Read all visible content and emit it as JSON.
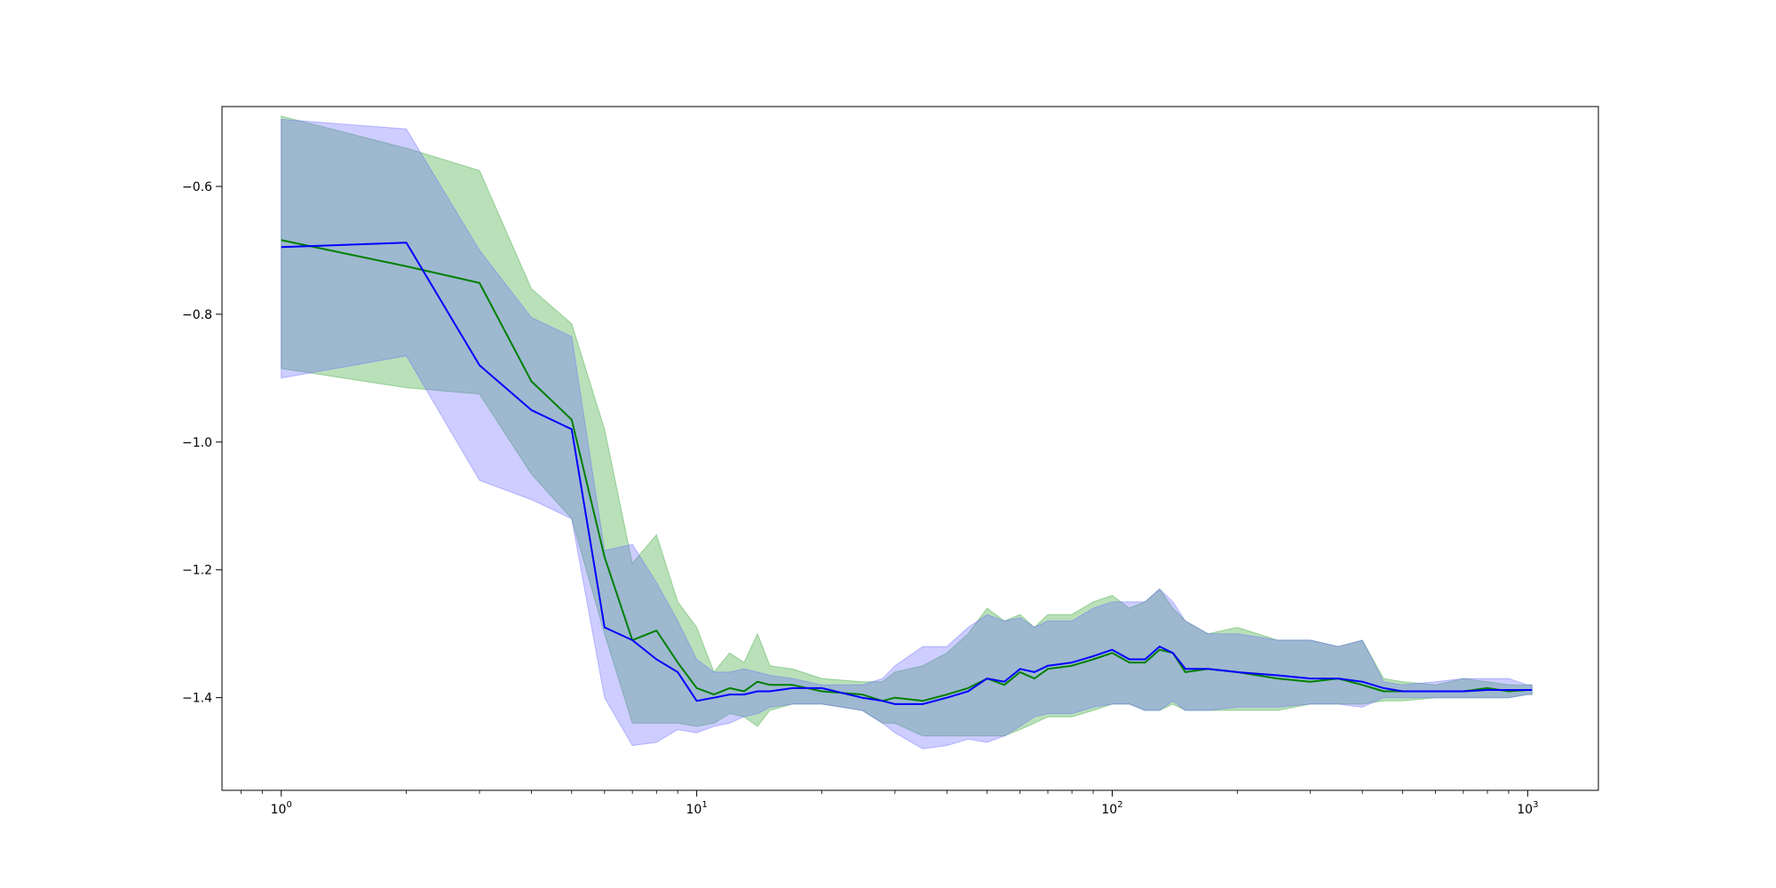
{
  "chart_data": {
    "type": "line",
    "title": "",
    "xlabel": "",
    "ylabel": "",
    "xscale": "log",
    "xlim": [
      0.72,
      1480
    ],
    "ylim": [
      -1.545,
      -0.475
    ],
    "grid": false,
    "legend": "none",
    "x_ticks": [
      {
        "value": 1,
        "base": "10",
        "exp": "0"
      },
      {
        "value": 10,
        "base": "10",
        "exp": "1"
      },
      {
        "value": 100,
        "base": "10",
        "exp": "2"
      },
      {
        "value": 1000,
        "base": "10",
        "exp": "3"
      }
    ],
    "y_ticks": [
      {
        "value": -0.6,
        "label": "−0.6"
      },
      {
        "value": -0.8,
        "label": "−0.8"
      },
      {
        "value": -1.0,
        "label": "−1.0"
      },
      {
        "value": -1.2,
        "label": "−1.2"
      },
      {
        "value": -1.4,
        "label": "−1.4"
      }
    ],
    "series": [
      {
        "color": "#008000",
        "band_color": "#2ca02c",
        "x": [
          1,
          2,
          3,
          4,
          5,
          6,
          7,
          8,
          9,
          10,
          11,
          12,
          13,
          14,
          15,
          17,
          20,
          25,
          28,
          30,
          35,
          40,
          45,
          50,
          55,
          60,
          65,
          70,
          80,
          90,
          100,
          110,
          120,
          130,
          140,
          150,
          170,
          200,
          250,
          300,
          350,
          400,
          450,
          500,
          600,
          700,
          800,
          900,
          1000,
          1024
        ],
        "mean": [
          -0.684,
          -0.725,
          -0.751,
          -0.905,
          -0.965,
          -1.18,
          -1.31,
          -1.295,
          -1.345,
          -1.385,
          -1.395,
          -1.385,
          -1.39,
          -1.375,
          -1.38,
          -1.38,
          -1.39,
          -1.395,
          -1.405,
          -1.4,
          -1.405,
          -1.395,
          -1.385,
          -1.37,
          -1.38,
          -1.36,
          -1.37,
          -1.355,
          -1.35,
          -1.34,
          -1.33,
          -1.345,
          -1.345,
          -1.325,
          -1.33,
          -1.36,
          -1.355,
          -1.36,
          -1.37,
          -1.375,
          -1.37,
          -1.38,
          -1.39,
          -1.39,
          -1.39,
          -1.39,
          -1.385,
          -1.39,
          -1.388,
          -1.388
        ],
        "upper": [
          -0.49,
          -0.54,
          -0.575,
          -0.76,
          -0.815,
          -0.98,
          -1.19,
          -1.145,
          -1.25,
          -1.29,
          -1.36,
          -1.33,
          -1.345,
          -1.3,
          -1.35,
          -1.355,
          -1.37,
          -1.375,
          -1.375,
          -1.36,
          -1.35,
          -1.33,
          -1.3,
          -1.26,
          -1.28,
          -1.27,
          -1.29,
          -1.27,
          -1.27,
          -1.25,
          -1.24,
          -1.26,
          -1.25,
          -1.23,
          -1.26,
          -1.28,
          -1.3,
          -1.29,
          -1.31,
          -1.31,
          -1.32,
          -1.31,
          -1.37,
          -1.375,
          -1.38,
          -1.37,
          -1.375,
          -1.38,
          -1.38,
          -1.38
        ],
        "lower": [
          -0.885,
          -0.915,
          -0.925,
          -1.05,
          -1.12,
          -1.3,
          -1.44,
          -1.44,
          -1.44,
          -1.445,
          -1.44,
          -1.425,
          -1.43,
          -1.445,
          -1.42,
          -1.41,
          -1.41,
          -1.42,
          -1.44,
          -1.44,
          -1.46,
          -1.46,
          -1.46,
          -1.46,
          -1.46,
          -1.45,
          -1.44,
          -1.43,
          -1.43,
          -1.42,
          -1.41,
          -1.41,
          -1.42,
          -1.42,
          -1.41,
          -1.42,
          -1.42,
          -1.42,
          -1.42,
          -1.41,
          -1.41,
          -1.41,
          -1.405,
          -1.405,
          -1.4,
          -1.4,
          -1.4,
          -1.4,
          -1.395,
          -1.395
        ]
      },
      {
        "color": "#0000ff",
        "band_color": "#6666ff",
        "x": [
          1,
          2,
          3,
          4,
          5,
          6,
          7,
          8,
          9,
          10,
          11,
          12,
          13,
          14,
          15,
          17,
          20,
          25,
          28,
          30,
          35,
          40,
          45,
          50,
          55,
          60,
          65,
          70,
          80,
          90,
          100,
          110,
          120,
          130,
          140,
          150,
          170,
          200,
          250,
          300,
          350,
          400,
          450,
          500,
          600,
          700,
          800,
          900,
          1000,
          1024
        ],
        "mean": [
          -0.695,
          -0.688,
          -0.88,
          -0.95,
          -0.98,
          -1.29,
          -1.31,
          -1.34,
          -1.36,
          -1.405,
          -1.4,
          -1.395,
          -1.395,
          -1.39,
          -1.39,
          -1.385,
          -1.385,
          -1.4,
          -1.405,
          -1.41,
          -1.41,
          -1.4,
          -1.39,
          -1.37,
          -1.375,
          -1.355,
          -1.36,
          -1.35,
          -1.345,
          -1.335,
          -1.325,
          -1.34,
          -1.34,
          -1.32,
          -1.33,
          -1.355,
          -1.355,
          -1.36,
          -1.365,
          -1.37,
          -1.37,
          -1.375,
          -1.385,
          -1.39,
          -1.39,
          -1.39,
          -1.388,
          -1.388,
          -1.388,
          -1.388
        ],
        "upper": [
          -0.495,
          -0.51,
          -0.7,
          -0.805,
          -0.835,
          -1.17,
          -1.16,
          -1.22,
          -1.28,
          -1.34,
          -1.36,
          -1.36,
          -1.355,
          -1.36,
          -1.365,
          -1.37,
          -1.38,
          -1.38,
          -1.37,
          -1.35,
          -1.32,
          -1.32,
          -1.29,
          -1.27,
          -1.28,
          -1.275,
          -1.29,
          -1.28,
          -1.28,
          -1.26,
          -1.25,
          -1.25,
          -1.25,
          -1.23,
          -1.25,
          -1.28,
          -1.3,
          -1.3,
          -1.31,
          -1.31,
          -1.32,
          -1.31,
          -1.375,
          -1.38,
          -1.375,
          -1.37,
          -1.37,
          -1.37,
          -1.38,
          -1.38
        ],
        "lower": [
          -0.9,
          -0.865,
          -1.06,
          -1.09,
          -1.12,
          -1.4,
          -1.475,
          -1.47,
          -1.45,
          -1.455,
          -1.445,
          -1.44,
          -1.43,
          -1.425,
          -1.415,
          -1.41,
          -1.41,
          -1.42,
          -1.44,
          -1.455,
          -1.48,
          -1.475,
          -1.465,
          -1.47,
          -1.46,
          -1.445,
          -1.43,
          -1.425,
          -1.425,
          -1.415,
          -1.41,
          -1.41,
          -1.42,
          -1.42,
          -1.405,
          -1.42,
          -1.42,
          -1.415,
          -1.415,
          -1.41,
          -1.41,
          -1.415,
          -1.4,
          -1.4,
          -1.4,
          -1.4,
          -1.4,
          -1.4,
          -1.395,
          -1.395
        ]
      }
    ]
  }
}
